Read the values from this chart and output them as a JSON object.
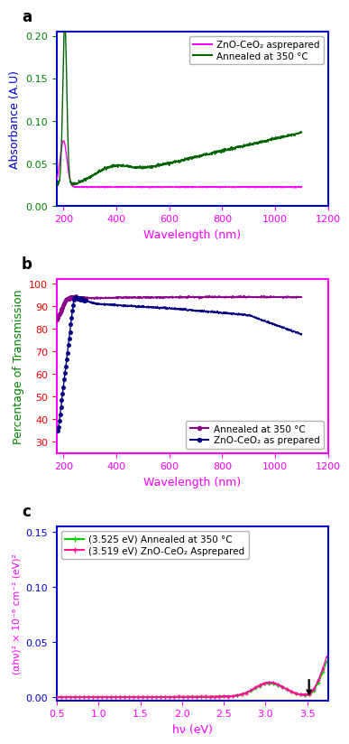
{
  "panel_a": {
    "title_label": "a",
    "xlabel": "Wavelength (nm)",
    "ylabel": "Absorbance (A.U)",
    "xlabel_color": "#FF00FF",
    "ylabel_color": "#0000CC",
    "tick_color_x": "#FF00FF",
    "tick_color_y": "#008000",
    "xlim": [
      175,
      1200
    ],
    "ylim": [
      0.0,
      0.205
    ],
    "yticks": [
      0.0,
      0.05,
      0.1,
      0.15,
      0.2
    ],
    "xticks": [
      200,
      400,
      600,
      800,
      1000,
      1200
    ],
    "spine_color": "#0000CC",
    "legend1_label": "ZnO-CeO₂ asprepared",
    "legend2_label": "Annealed at 350 °C",
    "line1_color": "#FF00FF",
    "line2_color": "#006400"
  },
  "panel_b": {
    "title_label": "b",
    "xlabel": "Wavelength (nm)",
    "ylabel": "Percentage of Transmission",
    "xlabel_color": "#FF00FF",
    "ylabel_color": "#008000",
    "tick_color_x": "#FF00FF",
    "tick_color_y": "#FF0000",
    "xlim": [
      175,
      1200
    ],
    "ylim": [
      25,
      102
    ],
    "yticks": [
      30,
      40,
      50,
      60,
      70,
      80,
      90,
      100
    ],
    "xticks": [
      200,
      400,
      600,
      800,
      1000,
      1200
    ],
    "spine_color": "#FF00FF",
    "legend1_label": "Annealed at 350 °C",
    "legend2_label": "ZnO-CeO₂ as prepared",
    "line1_color": "#8B008B",
    "line2_color": "#000080"
  },
  "panel_c": {
    "title_label": "c",
    "xlabel": "hν (eV)",
    "ylabel": "(αhν)² × 10⁻⁸ cm⁻² (eV)²",
    "xlabel_color": "#FF00FF",
    "ylabel_color": "#FF00FF",
    "tick_color_x": "#FF00FF",
    "tick_color_y": "#0000CC",
    "xlim": [
      0.5,
      3.75
    ],
    "ylim": [
      -0.003,
      0.155
    ],
    "yticks": [
      0.0,
      0.05,
      0.1,
      0.15
    ],
    "xticks": [
      0.5,
      1.0,
      1.5,
      2.0,
      2.5,
      3.0,
      3.5
    ],
    "spine_color": "#0000CC",
    "legend1_label": "(3.525 eV) Annealed at 350 °C",
    "legend2_label": "(3.519 eV) ZnO-CeO₂ Asprepared",
    "line1_color": "#00CC00",
    "line2_color": "#FF1493",
    "arrow_color": "#000000",
    "bandgap_green": 3.525,
    "bandgap_magenta": 3.519
  }
}
